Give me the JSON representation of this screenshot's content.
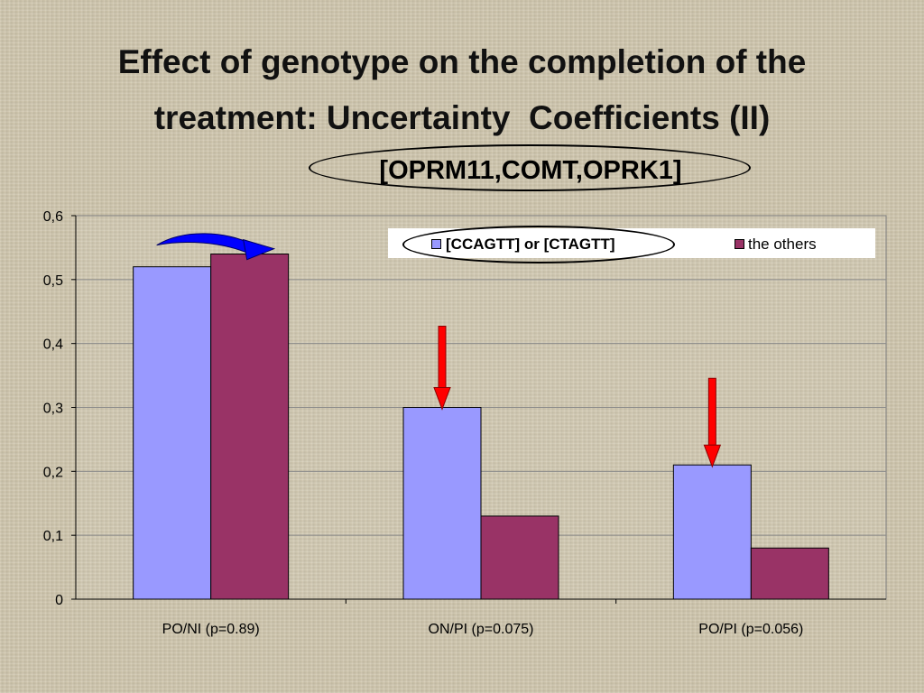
{
  "title_line1": "Effect of genotype on the completion of the",
  "title_line2": "treatment: Uncertainty  Coefficients (II)",
  "subtitle": "[OPRM11,COMT,OPRK1]",
  "colors": {
    "series1": "#9999ff",
    "series2": "#993366",
    "arrow_red": "#ff0000",
    "arrow_blue": "#0000ff"
  },
  "chart_data": {
    "type": "bar",
    "categories": [
      "PO/NI (p=0.89)",
      "ON/PI (p=0.075)",
      "PO/PI (p=0.056)"
    ],
    "series": [
      {
        "name": "[CCAGTT] or [CTAGTT]",
        "values": [
          0.52,
          0.3,
          0.21
        ]
      },
      {
        "name": "the others",
        "values": [
          0.54,
          0.13,
          0.08
        ]
      }
    ],
    "ylim": [
      0,
      0.6
    ],
    "yticks": [
      "0",
      "0,1",
      "0,2",
      "0,3",
      "0,4",
      "0,5",
      "0,6"
    ],
    "grid": true,
    "legend_position": "top-right",
    "annotations": [
      "curved blue arrow from PO/NI series 1 bar to series 2 bar",
      "red down arrow pointing at ON/PI series 1 bar",
      "red down arrow pointing at PO/PI series 1 bar"
    ]
  }
}
